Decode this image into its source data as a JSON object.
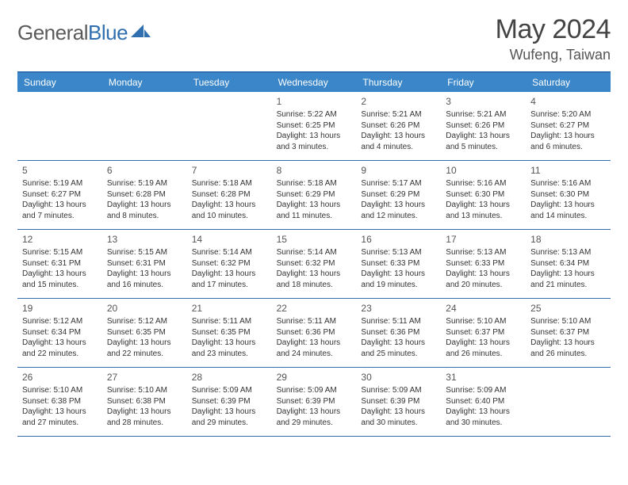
{
  "brand": {
    "text_gray": "General",
    "text_blue": "Blue",
    "sail_color": "#2f6fb0"
  },
  "header": {
    "month_title": "May 2024",
    "location": "Wufeng, Taiwan"
  },
  "colors": {
    "header_bg": "#3a86c8",
    "border": "#2f6fb0",
    "text": "#333333",
    "muted": "#555555",
    "background": "#ffffff"
  },
  "day_names": [
    "Sunday",
    "Monday",
    "Tuesday",
    "Wednesday",
    "Thursday",
    "Friday",
    "Saturday"
  ],
  "weeks": [
    [
      null,
      null,
      null,
      {
        "n": "1",
        "sr": "5:22 AM",
        "ss": "6:25 PM",
        "dl": "13 hours and 3 minutes."
      },
      {
        "n": "2",
        "sr": "5:21 AM",
        "ss": "6:26 PM",
        "dl": "13 hours and 4 minutes."
      },
      {
        "n": "3",
        "sr": "5:21 AM",
        "ss": "6:26 PM",
        "dl": "13 hours and 5 minutes."
      },
      {
        "n": "4",
        "sr": "5:20 AM",
        "ss": "6:27 PM",
        "dl": "13 hours and 6 minutes."
      }
    ],
    [
      {
        "n": "5",
        "sr": "5:19 AM",
        "ss": "6:27 PM",
        "dl": "13 hours and 7 minutes."
      },
      {
        "n": "6",
        "sr": "5:19 AM",
        "ss": "6:28 PM",
        "dl": "13 hours and 8 minutes."
      },
      {
        "n": "7",
        "sr": "5:18 AM",
        "ss": "6:28 PM",
        "dl": "13 hours and 10 minutes."
      },
      {
        "n": "8",
        "sr": "5:18 AM",
        "ss": "6:29 PM",
        "dl": "13 hours and 11 minutes."
      },
      {
        "n": "9",
        "sr": "5:17 AM",
        "ss": "6:29 PM",
        "dl": "13 hours and 12 minutes."
      },
      {
        "n": "10",
        "sr": "5:16 AM",
        "ss": "6:30 PM",
        "dl": "13 hours and 13 minutes."
      },
      {
        "n": "11",
        "sr": "5:16 AM",
        "ss": "6:30 PM",
        "dl": "13 hours and 14 minutes."
      }
    ],
    [
      {
        "n": "12",
        "sr": "5:15 AM",
        "ss": "6:31 PM",
        "dl": "13 hours and 15 minutes."
      },
      {
        "n": "13",
        "sr": "5:15 AM",
        "ss": "6:31 PM",
        "dl": "13 hours and 16 minutes."
      },
      {
        "n": "14",
        "sr": "5:14 AM",
        "ss": "6:32 PM",
        "dl": "13 hours and 17 minutes."
      },
      {
        "n": "15",
        "sr": "5:14 AM",
        "ss": "6:32 PM",
        "dl": "13 hours and 18 minutes."
      },
      {
        "n": "16",
        "sr": "5:13 AM",
        "ss": "6:33 PM",
        "dl": "13 hours and 19 minutes."
      },
      {
        "n": "17",
        "sr": "5:13 AM",
        "ss": "6:33 PM",
        "dl": "13 hours and 20 minutes."
      },
      {
        "n": "18",
        "sr": "5:13 AM",
        "ss": "6:34 PM",
        "dl": "13 hours and 21 minutes."
      }
    ],
    [
      {
        "n": "19",
        "sr": "5:12 AM",
        "ss": "6:34 PM",
        "dl": "13 hours and 22 minutes."
      },
      {
        "n": "20",
        "sr": "5:12 AM",
        "ss": "6:35 PM",
        "dl": "13 hours and 22 minutes."
      },
      {
        "n": "21",
        "sr": "5:11 AM",
        "ss": "6:35 PM",
        "dl": "13 hours and 23 minutes."
      },
      {
        "n": "22",
        "sr": "5:11 AM",
        "ss": "6:36 PM",
        "dl": "13 hours and 24 minutes."
      },
      {
        "n": "23",
        "sr": "5:11 AM",
        "ss": "6:36 PM",
        "dl": "13 hours and 25 minutes."
      },
      {
        "n": "24",
        "sr": "5:10 AM",
        "ss": "6:37 PM",
        "dl": "13 hours and 26 minutes."
      },
      {
        "n": "25",
        "sr": "5:10 AM",
        "ss": "6:37 PM",
        "dl": "13 hours and 26 minutes."
      }
    ],
    [
      {
        "n": "26",
        "sr": "5:10 AM",
        "ss": "6:38 PM",
        "dl": "13 hours and 27 minutes."
      },
      {
        "n": "27",
        "sr": "5:10 AM",
        "ss": "6:38 PM",
        "dl": "13 hours and 28 minutes."
      },
      {
        "n": "28",
        "sr": "5:09 AM",
        "ss": "6:39 PM",
        "dl": "13 hours and 29 minutes."
      },
      {
        "n": "29",
        "sr": "5:09 AM",
        "ss": "6:39 PM",
        "dl": "13 hours and 29 minutes."
      },
      {
        "n": "30",
        "sr": "5:09 AM",
        "ss": "6:39 PM",
        "dl": "13 hours and 30 minutes."
      },
      {
        "n": "31",
        "sr": "5:09 AM",
        "ss": "6:40 PM",
        "dl": "13 hours and 30 minutes."
      },
      null
    ]
  ],
  "labels": {
    "sunrise": "Sunrise: ",
    "sunset": "Sunset: ",
    "daylight": "Daylight: "
  }
}
